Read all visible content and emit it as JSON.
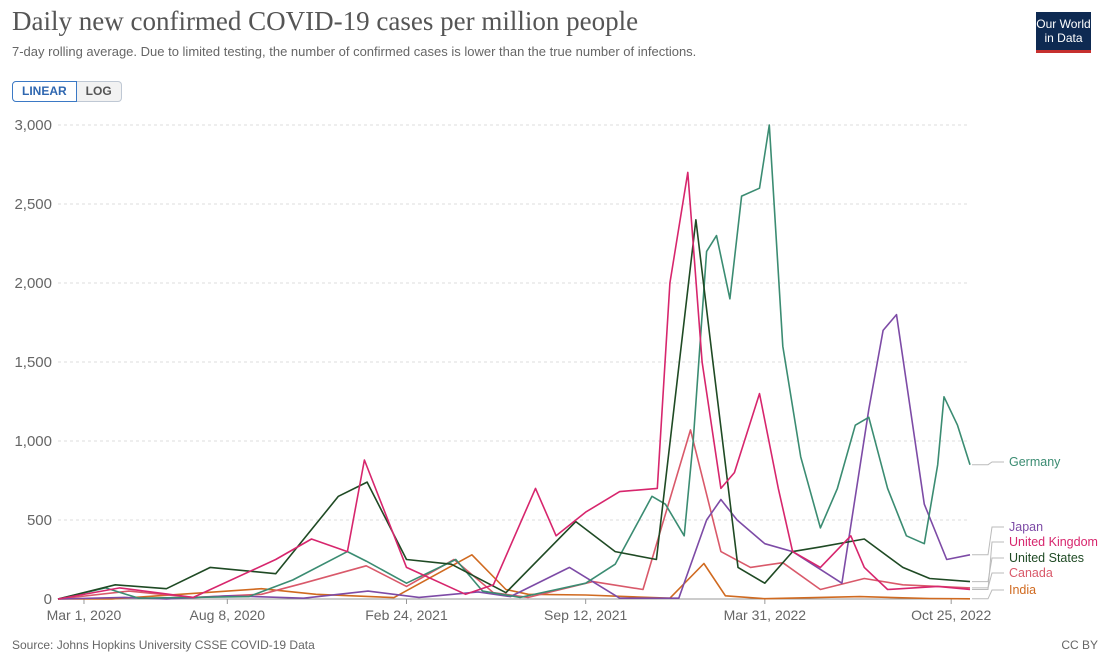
{
  "header": {
    "title": "Daily new confirmed COVID-19 cases per million people",
    "subtitle": "7-day rolling average. Due to limited testing, the number of confirmed cases is lower than the true number of infections.",
    "logo_line1": "Our World",
    "logo_line2": "in Data"
  },
  "toggle": {
    "linear_label": "LINEAR",
    "log_label": "LOG",
    "selected": "LINEAR"
  },
  "footer": {
    "source": "Source: Johns Hopkins University CSSE COVID-19 Data",
    "license": "CC BY"
  },
  "colors": {
    "Germany": "#3b8c72",
    "Japan": "#7d4ba6",
    "United Kingdom": "#d7266d",
    "United States": "#1f4a24",
    "Canada": "#d9596a",
    "India": "#d06a20"
  },
  "chart_data": {
    "type": "line",
    "ylim": [
      0,
      3000
    ],
    "yticks": [
      0,
      500,
      1000,
      1500,
      2000,
      2500,
      3000
    ],
    "ytick_labels": [
      "0",
      "500",
      "1,000",
      "1,500",
      "2,000",
      "2,500",
      "3,000"
    ],
    "xlim": [
      "2020-02-01",
      "2022-11-15"
    ],
    "xticks": [
      "2020-03-01",
      "2020-08-08",
      "2021-02-24",
      "2021-09-12",
      "2022-03-31",
      "2022-10-25"
    ],
    "xtick_labels": [
      "Mar 1, 2020",
      "Aug 8, 2020",
      "Feb 24, 2021",
      "Sep 12, 2021",
      "Mar 31, 2022",
      "Oct 25, 2022"
    ],
    "grid": true,
    "legend": "right-labels",
    "series": [
      {
        "name": "Germany",
        "x": [
          "2020-02-01",
          "2020-03-25",
          "2020-05-01",
          "2020-09-01",
          "2020-10-20",
          "2020-12-20",
          "2021-01-10",
          "2021-02-24",
          "2021-04-20",
          "2021-05-20",
          "2021-07-01",
          "2021-09-12",
          "2021-10-15",
          "2021-11-25",
          "2021-12-10",
          "2021-12-31",
          "2022-01-10",
          "2022-01-25",
          "2022-02-05",
          "2022-02-20",
          "2022-03-05",
          "2022-03-25",
          "2022-04-05",
          "2022-04-20",
          "2022-05-10",
          "2022-06-01",
          "2022-06-20",
          "2022-07-10",
          "2022-07-25",
          "2022-08-15",
          "2022-09-05",
          "2022-09-25",
          "2022-10-10",
          "2022-10-17",
          "2022-11-01",
          "2022-11-15"
        ],
        "values": [
          0,
          70,
          5,
          15,
          120,
          300,
          240,
          100,
          250,
          50,
          10,
          100,
          220,
          650,
          600,
          400,
          1000,
          2200,
          2300,
          1900,
          2550,
          2600,
          3000,
          1600,
          900,
          450,
          700,
          1100,
          1150,
          700,
          400,
          350,
          850,
          1280,
          1100,
          850
        ]
      },
      {
        "name": "Japan",
        "x": [
          "2020-02-01",
          "2020-04-15",
          "2020-06-01",
          "2020-08-10",
          "2020-11-01",
          "2021-01-12",
          "2021-03-10",
          "2021-05-15",
          "2021-06-20",
          "2021-08-25",
          "2021-10-20",
          "2021-12-25",
          "2022-01-25",
          "2022-02-10",
          "2022-02-28",
          "2022-03-31",
          "2022-05-01",
          "2022-06-25",
          "2022-07-25",
          "2022-08-10",
          "2022-08-25",
          "2022-09-25",
          "2022-10-20",
          "2022-11-15"
        ],
        "values": [
          0,
          10,
          0,
          20,
          5,
          50,
          10,
          45,
          15,
          200,
          5,
          5,
          500,
          630,
          500,
          350,
          300,
          100,
          1200,
          1700,
          1800,
          600,
          250,
          280
        ]
      },
      {
        "name": "United Kingdom",
        "x": [
          "2020-02-01",
          "2020-04-10",
          "2020-07-01",
          "2020-10-01",
          "2020-11-10",
          "2020-12-20",
          "2021-01-08",
          "2021-02-24",
          "2021-05-01",
          "2021-06-01",
          "2021-07-18",
          "2021-08-10",
          "2021-09-12",
          "2021-10-20",
          "2021-12-01",
          "2021-12-15",
          "2022-01-04",
          "2022-01-20",
          "2022-02-10",
          "2022-02-25",
          "2022-03-25",
          "2022-04-15",
          "2022-05-01",
          "2022-06-01",
          "2022-07-05",
          "2022-07-20",
          "2022-08-15",
          "2022-10-10",
          "2022-11-15"
        ],
        "values": [
          0,
          70,
          10,
          250,
          380,
          300,
          880,
          200,
          30,
          90,
          700,
          400,
          550,
          680,
          700,
          2000,
          2700,
          1500,
          700,
          800,
          1300,
          700,
          300,
          200,
          400,
          200,
          60,
          80,
          60
        ]
      },
      {
        "name": "United States",
        "x": [
          "2020-02-01",
          "2020-04-05",
          "2020-06-01",
          "2020-07-20",
          "2020-10-01",
          "2020-12-10",
          "2021-01-11",
          "2021-02-24",
          "2021-04-15",
          "2021-06-15",
          "2021-09-01",
          "2021-10-15",
          "2021-11-30",
          "2022-01-13",
          "2022-02-01",
          "2022-03-01",
          "2022-03-31",
          "2022-05-01",
          "2022-06-01",
          "2022-07-20",
          "2022-09-01",
          "2022-10-01",
          "2022-11-15"
        ],
        "values": [
          0,
          90,
          65,
          200,
          160,
          650,
          740,
          250,
          220,
          40,
          490,
          300,
          250,
          2400,
          1500,
          200,
          100,
          300,
          330,
          380,
          200,
          130,
          110
        ]
      },
      {
        "name": "Canada",
        "x": [
          "2020-02-01",
          "2020-04-20",
          "2020-07-01",
          "2020-09-15",
          "2020-11-01",
          "2021-01-10",
          "2021-02-24",
          "2021-04-18",
          "2021-06-01",
          "2021-07-10",
          "2021-09-20",
          "2021-11-15",
          "2022-01-07",
          "2022-02-10",
          "2022-03-15",
          "2022-04-20",
          "2022-06-01",
          "2022-07-20",
          "2022-09-01",
          "2022-11-15"
        ],
        "values": [
          0,
          50,
          10,
          30,
          100,
          210,
          80,
          250,
          40,
          10,
          110,
          60,
          1070,
          300,
          200,
          230,
          60,
          130,
          90,
          70
        ]
      },
      {
        "name": "India",
        "x": [
          "2020-02-01",
          "2020-04-01",
          "2020-09-15",
          "2020-11-15",
          "2021-02-10",
          "2021-05-08",
          "2021-06-15",
          "2021-07-10",
          "2021-09-12",
          "2021-12-15",
          "2022-01-22",
          "2022-02-15",
          "2022-03-31",
          "2022-07-15",
          "2022-10-01",
          "2022-11-15"
        ],
        "values": [
          0,
          0,
          65,
          30,
          9,
          280,
          60,
          30,
          25,
          5,
          225,
          20,
          2,
          15,
          3,
          1
        ]
      }
    ]
  }
}
